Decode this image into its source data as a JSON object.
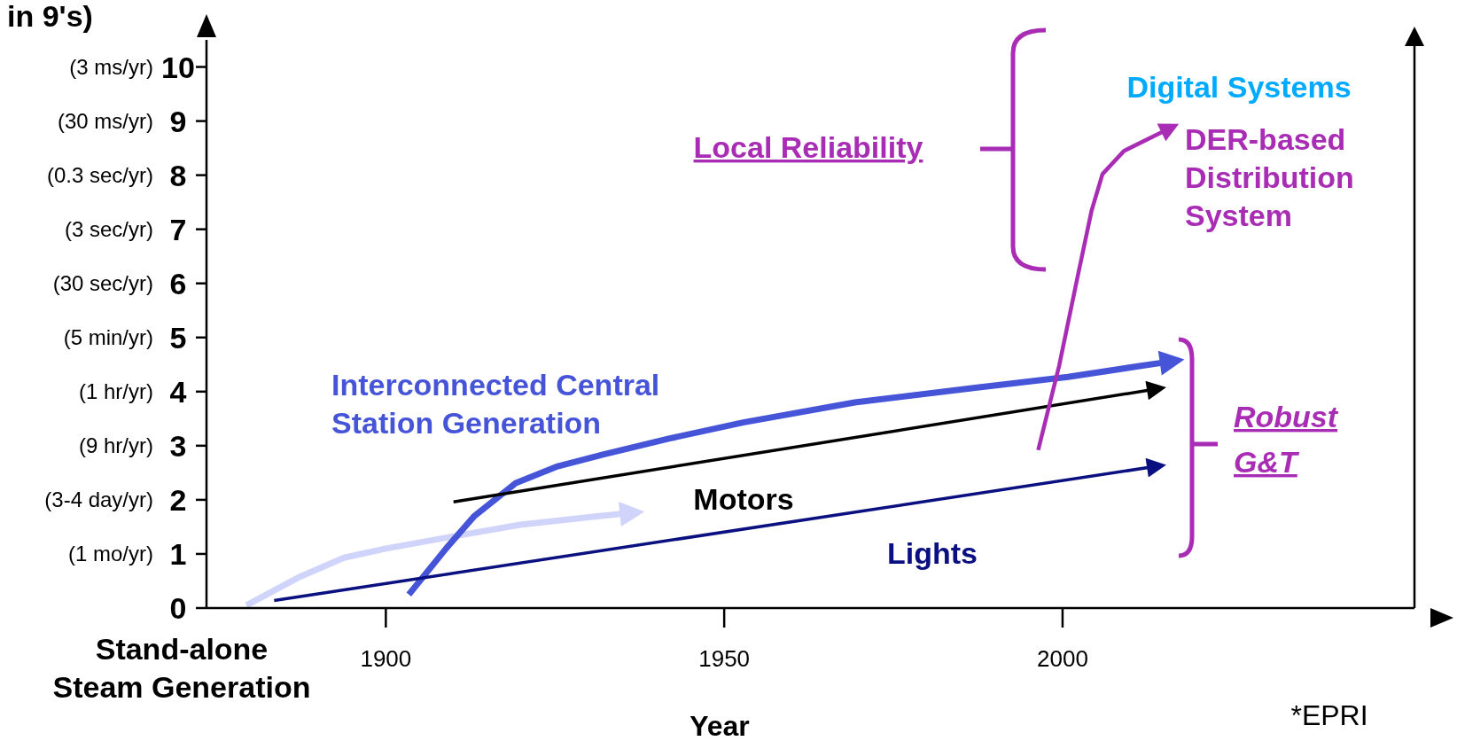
{
  "chart_data": {
    "type": "line",
    "xlabel": "Year",
    "ylabel": "in 9's)",
    "xlim": [
      1873.5,
      2052
    ],
    "xticks": [
      1900,
      1950,
      2000
    ],
    "ylim": [
      0,
      10.5
    ],
    "yticks": [
      0,
      1,
      2,
      3,
      4,
      5,
      6,
      7,
      8,
      9,
      10
    ],
    "line_style": "solid",
    "series": [
      {
        "color": "#d0d4fa",
        "x": [
          1879.4,
          1887,
          1893.8,
          1900,
          1908.9,
          1919.9,
          1930.9,
          1936.4
        ],
        "values": [
          0.05,
          0.56,
          0.93,
          1.1,
          1.3,
          1.54,
          1.69,
          1.76
        ]
      },
      {
        "name": "Interconnected Central Station Generation",
        "color": "#4655d8",
        "x": [
          1903.4,
          1908.9,
          1913,
          1919.2,
          1925.4,
          1932.2,
          1941.8,
          1952.8,
          1969.3,
          1987.1,
          2000.8,
          2011.8,
          2016.2
        ],
        "values": [
          0.25,
          1.1,
          1.69,
          2.31,
          2.62,
          2.84,
          3.13,
          3.43,
          3.8,
          4.07,
          4.27,
          4.48,
          4.56
        ]
      },
      {
        "name": "Motors",
        "color": "#000000",
        "x": [
          1910,
          2013.9
        ],
        "values": [
          1.96,
          4.05
        ]
      },
      {
        "name": "Lights",
        "color": "#0a1080",
        "x": [
          1883.5,
          2013.9
        ],
        "values": [
          0.14,
          2.62
        ]
      },
      {
        "name": "DER-based Distribution System",
        "color": "#a82db4",
        "x": [
          1996.4,
          1999.5,
          2002.3,
          2004.3,
          2005.9,
          2009.1,
          2015.9
        ],
        "values": [
          2.92,
          4.48,
          6.17,
          7.35,
          8.02,
          8.45,
          8.87
        ]
      }
    ],
    "annotations": [
      "Digital Systems",
      "Local Reliability",
      "Robust G&T",
      "*EPRI",
      "Stand-alone Steam Generation",
      "(1 mo/yr)",
      "(3-4 day/yr)",
      "(9 hr/yr)",
      "(1 hr/yr)",
      "(5 min/yr)",
      "(30 sec/yr)",
      "(3 sec/yr)",
      "(0.3 sec/yr)",
      "(30 ms/yr)",
      "(3 ms/yr)"
    ]
  }
}
